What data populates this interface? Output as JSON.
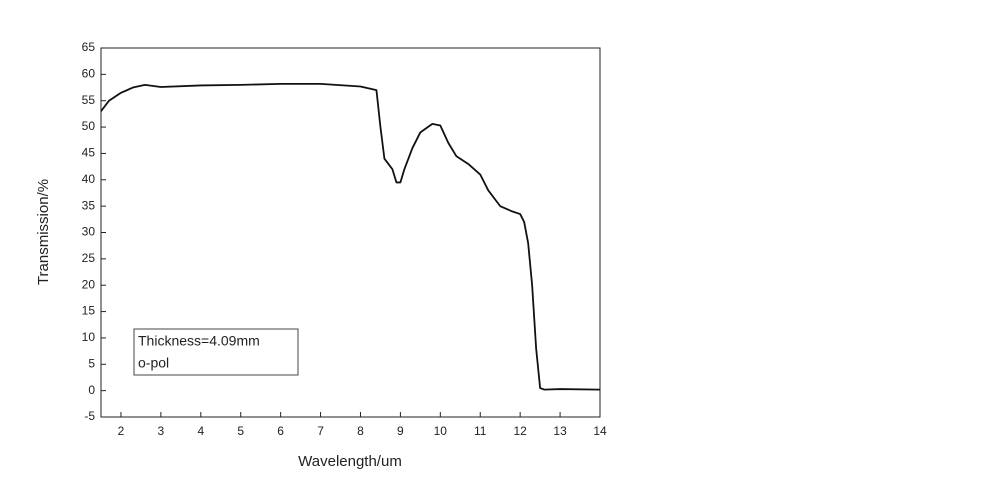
{
  "chart_data": {
    "type": "line",
    "x_label": "Wavelength/um",
    "y_label": "Transmission/%",
    "annotations": [
      "Thickness=4.09mm",
      "o-pol"
    ],
    "xlim": [
      1.5,
      14
    ],
    "ylim": [
      -5,
      65
    ],
    "xticks": [
      2,
      3,
      4,
      5,
      6,
      7,
      8,
      9,
      10,
      11,
      12,
      13,
      14
    ],
    "yticks": [
      -5,
      0,
      5,
      10,
      15,
      20,
      25,
      30,
      35,
      40,
      45,
      50,
      55,
      60,
      65
    ],
    "series": [
      {
        "color": "#111111",
        "x": [
          1.5,
          1.7,
          2.0,
          2.3,
          2.6,
          3.0,
          4.0,
          5.0,
          6.0,
          7.0,
          8.0,
          8.4,
          8.5,
          8.6,
          8.7,
          8.8,
          8.9,
          9.0,
          9.1,
          9.3,
          9.5,
          9.8,
          10.0,
          10.2,
          10.4,
          10.7,
          11.0,
          11.2,
          11.5,
          11.8,
          12.0,
          12.1,
          12.2,
          12.3,
          12.4,
          12.5,
          12.6,
          13.0,
          14.0
        ],
        "values": [
          53,
          55,
          56.5,
          57.5,
          58,
          57.6,
          57.9,
          58,
          58.2,
          58.2,
          57.7,
          57,
          50,
          44,
          43,
          42,
          39.5,
          39.5,
          42,
          46,
          49,
          50.6,
          50.3,
          47,
          44.5,
          43,
          41,
          38,
          35,
          34,
          33.5,
          32,
          28,
          20,
          8,
          0.5,
          0.2,
          0.3,
          0.2
        ]
      }
    ]
  }
}
